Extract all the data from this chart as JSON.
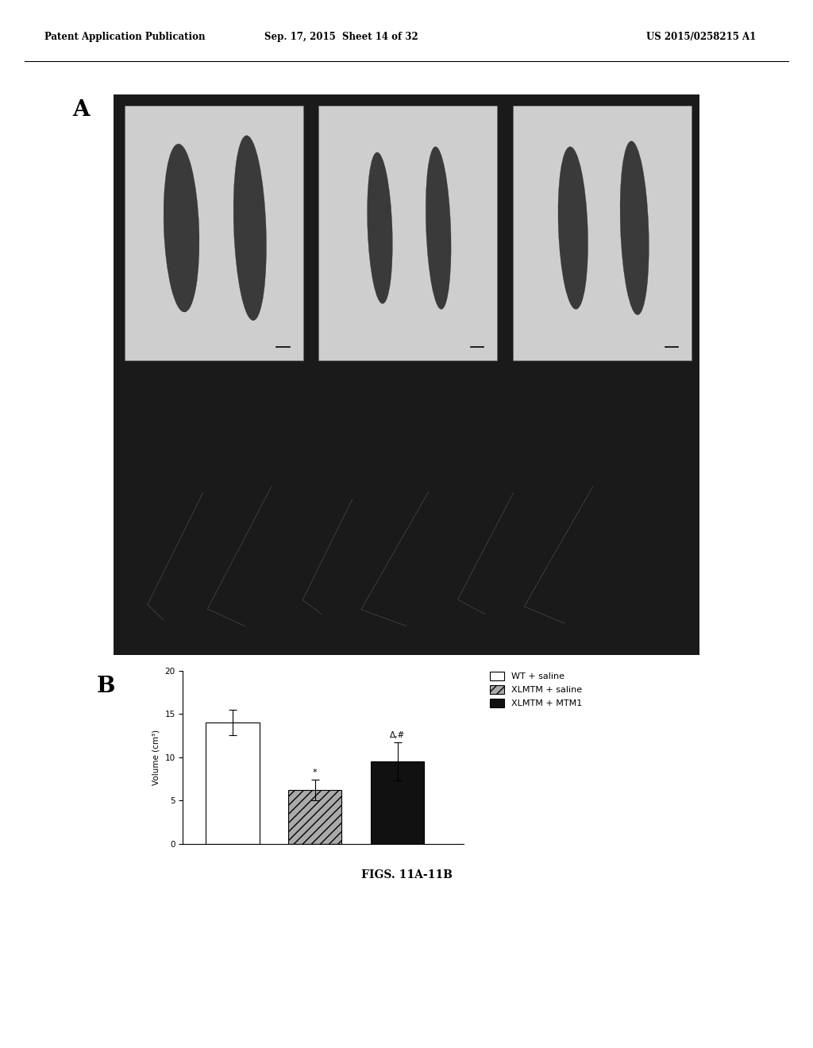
{
  "page_header_left": "Patent Application Publication",
  "page_header_middle": "Sep. 17, 2015  Sheet 14 of 32",
  "page_header_right": "US 2015/0258215 A1",
  "panel_a_label": "A",
  "panel_b_label": "B",
  "figure_caption": "FIGS. 11A-11B",
  "bar_values": [
    14.0,
    6.2,
    9.5
  ],
  "bar_errors": [
    1.5,
    1.2,
    2.2
  ],
  "bar_colors": [
    "white",
    "#aaaaaa",
    "#111111"
  ],
  "bar_hatches": [
    null,
    "///",
    null
  ],
  "ylabel": "Volume (cm³)",
  "ylim": [
    0,
    20
  ],
  "yticks": [
    0,
    5,
    10,
    15,
    20
  ],
  "legend_labels": [
    "WT + saline",
    "XLMTM + saline",
    "XLMTM + MTM1"
  ],
  "legend_colors": [
    "white",
    "#aaaaaa",
    "#111111"
  ],
  "legend_hatches": [
    null,
    "///",
    null
  ],
  "stat_annotations": [
    "*",
    "Δ,#"
  ],
  "background_color": "white",
  "panel_bg": "#1e1e1e"
}
